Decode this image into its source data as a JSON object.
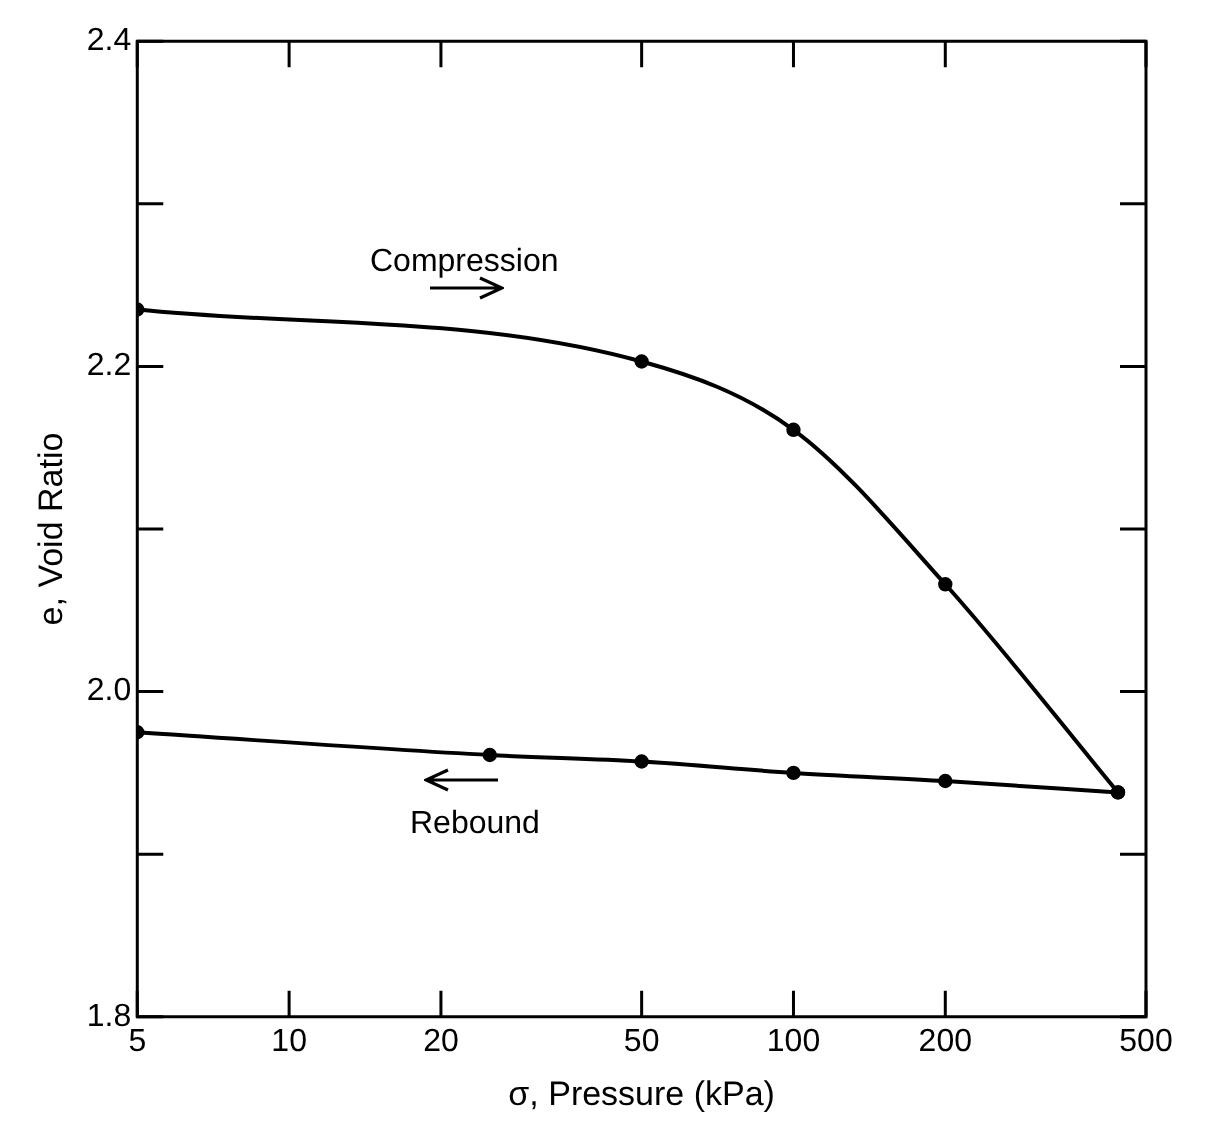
{
  "chart_data": {
    "type": "line",
    "xlabel": "σ, Pressure (kPa)",
    "ylabel": "e, Void Ratio",
    "log": "x",
    "xlim": [
      5,
      500
    ],
    "xticks": [
      5,
      10,
      20,
      50,
      100,
      200,
      500
    ],
    "ylim": [
      1.8,
      2.4
    ],
    "yticks": [
      1.8,
      {
        "value": 1.9,
        "label": null
      },
      {
        "value": 2.0,
        "label": "2.0"
      },
      {
        "value": 2.1,
        "label": null
      },
      2.2,
      {
        "value": 2.3,
        "label": null
      },
      2.4
    ],
    "marker": "circle",
    "line_style": "solid",
    "annotations": [
      "Compression",
      "Rebound"
    ],
    "series": [
      {
        "color": "#000000",
        "x": [
          5,
          50,
          100,
          200,
          440
        ],
        "values": [
          2.235,
          2.203,
          2.161,
          2.066,
          1.938
        ]
      },
      {
        "color": "#000000",
        "x": [
          440,
          200,
          100,
          50,
          25,
          5
        ],
        "values": [
          1.938,
          1.945,
          1.95,
          1.957,
          1.961,
          1.975
        ]
      }
    ]
  }
}
